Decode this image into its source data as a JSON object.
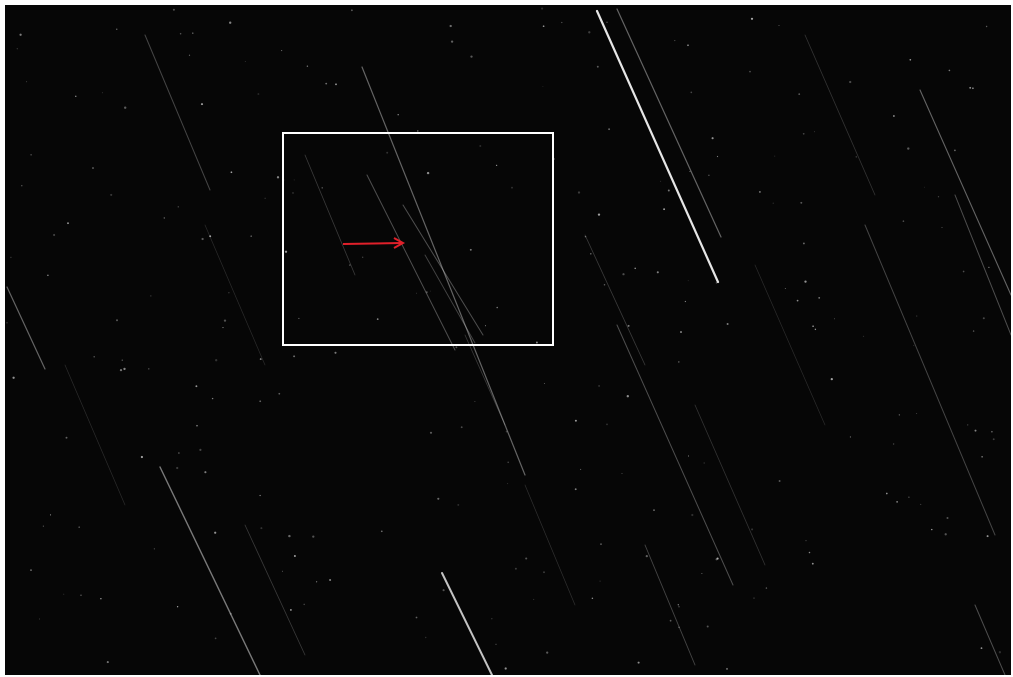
{
  "image": {
    "subject": "star-trails-night-sky",
    "background_color": "#060606",
    "trail_color": "#d8d8d8",
    "bright_trail_color": "#f2f2f2",
    "annotation_box_color": "#ffffff",
    "arrow_color": "#e0202a"
  }
}
